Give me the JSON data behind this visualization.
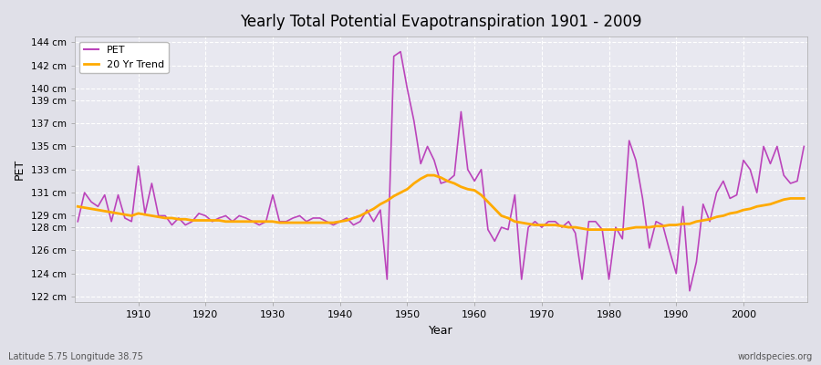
{
  "title": "Yearly Total Potential Evapotranspiration 1901 - 2009",
  "xlabel": "Year",
  "ylabel": "PET",
  "bottom_left_label": "Latitude 5.75 Longitude 38.75",
  "bottom_right_label": "worldspecies.org",
  "pet_color": "#bb44bb",
  "trend_color": "#ffaa00",
  "bg_color": "#e0e0e8",
  "plot_bg_color": "#e8e8f0",
  "grid_color": "#ffffff",
  "ylim": [
    121.5,
    144.5
  ],
  "years": [
    1901,
    1902,
    1903,
    1904,
    1905,
    1906,
    1907,
    1908,
    1909,
    1910,
    1911,
    1912,
    1913,
    1914,
    1915,
    1916,
    1917,
    1918,
    1919,
    1920,
    1921,
    1922,
    1923,
    1924,
    1925,
    1926,
    1927,
    1928,
    1929,
    1930,
    1931,
    1932,
    1933,
    1934,
    1935,
    1936,
    1937,
    1938,
    1939,
    1940,
    1941,
    1942,
    1943,
    1944,
    1945,
    1946,
    1947,
    1948,
    1949,
    1950,
    1951,
    1952,
    1953,
    1954,
    1955,
    1956,
    1957,
    1958,
    1959,
    1960,
    1961,
    1962,
    1963,
    1964,
    1965,
    1966,
    1967,
    1968,
    1969,
    1970,
    1971,
    1972,
    1973,
    1974,
    1975,
    1976,
    1977,
    1978,
    1979,
    1980,
    1981,
    1982,
    1983,
    1984,
    1985,
    1986,
    1987,
    1988,
    1989,
    1990,
    1991,
    1992,
    1993,
    1994,
    1995,
    1996,
    1997,
    1998,
    1999,
    2000,
    2001,
    2002,
    2003,
    2004,
    2005,
    2006,
    2007,
    2008,
    2009
  ],
  "pet_values": [
    128.5,
    131.0,
    130.2,
    129.8,
    130.8,
    128.5,
    130.8,
    128.8,
    128.5,
    133.3,
    129.2,
    131.8,
    129.0,
    129.0,
    128.2,
    128.8,
    128.2,
    128.5,
    129.2,
    129.0,
    128.5,
    128.8,
    129.0,
    128.5,
    129.0,
    128.8,
    128.5,
    128.2,
    128.5,
    130.8,
    128.5,
    128.5,
    128.8,
    129.0,
    128.5,
    128.8,
    128.8,
    128.5,
    128.2,
    128.5,
    128.8,
    128.2,
    128.5,
    129.5,
    128.5,
    129.5,
    123.5,
    142.8,
    143.2,
    140.0,
    137.2,
    133.5,
    135.0,
    133.8,
    131.8,
    132.0,
    132.5,
    138.0,
    133.0,
    132.0,
    133.0,
    127.8,
    126.8,
    128.0,
    127.8,
    130.8,
    123.5,
    128.0,
    128.5,
    128.0,
    128.5,
    128.5,
    128.0,
    128.5,
    127.5,
    123.5,
    128.5,
    128.5,
    127.8,
    123.5,
    128.0,
    127.0,
    135.5,
    133.8,
    130.5,
    126.2,
    128.5,
    128.2,
    126.0,
    124.0,
    129.8,
    122.5,
    125.0,
    130.0,
    128.5,
    131.0,
    132.0,
    130.5,
    130.8,
    133.8,
    133.0,
    131.0,
    135.0,
    133.5,
    135.0,
    132.5,
    131.8,
    132.0,
    135.0
  ],
  "trend_values": [
    129.8,
    129.7,
    129.6,
    129.5,
    129.4,
    129.3,
    129.2,
    129.1,
    129.0,
    129.2,
    129.1,
    129.0,
    128.9,
    128.8,
    128.8,
    128.7,
    128.7,
    128.6,
    128.6,
    128.6,
    128.6,
    128.6,
    128.5,
    128.5,
    128.5,
    128.5,
    128.5,
    128.5,
    128.5,
    128.5,
    128.4,
    128.4,
    128.4,
    128.4,
    128.4,
    128.4,
    128.4,
    128.4,
    128.4,
    128.5,
    128.6,
    128.8,
    129.0,
    129.3,
    129.6,
    130.0,
    130.3,
    130.7,
    131.0,
    131.3,
    131.8,
    132.2,
    132.5,
    132.5,
    132.3,
    132.0,
    131.8,
    131.5,
    131.3,
    131.2,
    130.8,
    130.2,
    129.6,
    129.0,
    128.8,
    128.5,
    128.4,
    128.3,
    128.2,
    128.2,
    128.2,
    128.2,
    128.1,
    128.0,
    128.0,
    127.9,
    127.8,
    127.8,
    127.8,
    127.8,
    127.8,
    127.8,
    127.9,
    128.0,
    128.0,
    128.0,
    128.1,
    128.1,
    128.2,
    128.2,
    128.3,
    128.3,
    128.5,
    128.6,
    128.7,
    128.9,
    129.0,
    129.2,
    129.3,
    129.5,
    129.6,
    129.8,
    129.9,
    130.0,
    130.2,
    130.4,
    130.5,
    130.5,
    130.5
  ],
  "legend_pet_label": "PET",
  "legend_trend_label": "20 Yr Trend",
  "xtick_positions": [
    1910,
    1920,
    1930,
    1940,
    1950,
    1960,
    1970,
    1980,
    1990,
    2000
  ],
  "ytick_vals": [
    122,
    124,
    126,
    128,
    129,
    131,
    133,
    135,
    137,
    139,
    140,
    142,
    144
  ]
}
